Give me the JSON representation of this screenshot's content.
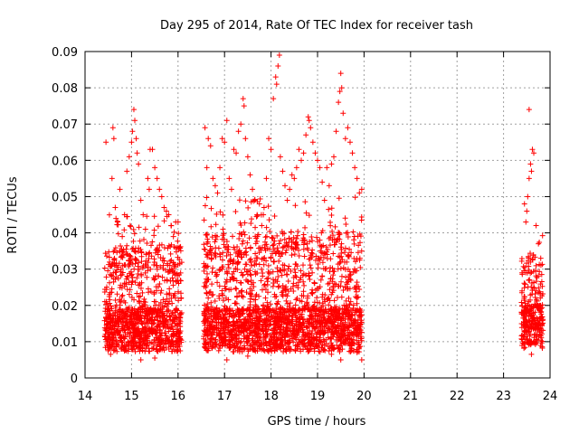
{
  "chart_data": {
    "type": "scatter",
    "title": "Day 295 of 2014, Rate Of TEC Index for receiver tash",
    "xlabel": "GPS time / hours",
    "ylabel": "ROTI / TECUs",
    "xlim": [
      14,
      24
    ],
    "ylim": [
      0,
      0.09
    ],
    "xticks": [
      "14",
      "15",
      "16",
      "17",
      "18",
      "19",
      "20",
      "21",
      "22",
      "23",
      "24"
    ],
    "yticks": [
      "0",
      "0.01",
      "0.02",
      "0.03",
      "0.04",
      "0.05",
      "0.06",
      "0.07",
      "0.08",
      "0.09"
    ],
    "grid": true,
    "marker": "+",
    "color": "#ff0000",
    "series": [
      {
        "name": "ROTI",
        "segments": [
          {
            "x_start": 14.42,
            "x_end": 16.08,
            "baseline": 0.012,
            "envelope": 0.045
          },
          {
            "x_start": 16.55,
            "x_end": 19.95,
            "baseline": 0.012,
            "envelope": 0.05
          },
          {
            "x_start": 23.38,
            "x_end": 23.85,
            "baseline": 0.013,
            "envelope": 0.04
          }
        ],
        "points": [
          [
            14.45,
            0.065
          ],
          [
            14.55,
            0.0065
          ],
          [
            14.58,
            0.055
          ],
          [
            14.6,
            0.069
          ],
          [
            14.62,
            0.066
          ],
          [
            14.65,
            0.047
          ],
          [
            14.7,
            0.043
          ],
          [
            14.75,
            0.052
          ],
          [
            14.8,
            0.039
          ],
          [
            14.85,
            0.045
          ],
          [
            14.9,
            0.057
          ],
          [
            14.95,
            0.061
          ],
          [
            15.0,
            0.065
          ],
          [
            15.02,
            0.068
          ],
          [
            15.05,
            0.074
          ],
          [
            15.07,
            0.071
          ],
          [
            15.1,
            0.066
          ],
          [
            15.12,
            0.062
          ],
          [
            15.15,
            0.059
          ],
          [
            15.2,
            0.049
          ],
          [
            15.25,
            0.045
          ],
          [
            15.3,
            0.041
          ],
          [
            15.35,
            0.055
          ],
          [
            15.38,
            0.052
          ],
          [
            15.4,
            0.063
          ],
          [
            15.45,
            0.063
          ],
          [
            15.5,
            0.058
          ],
          [
            15.55,
            0.055
          ],
          [
            15.6,
            0.052
          ],
          [
            15.65,
            0.05
          ],
          [
            15.7,
            0.047
          ],
          [
            15.75,
            0.046
          ],
          [
            15.8,
            0.045
          ],
          [
            15.85,
            0.042
          ],
          [
            15.9,
            0.039
          ],
          [
            15.95,
            0.043
          ],
          [
            16.0,
            0.043
          ],
          [
            16.58,
            0.069
          ],
          [
            16.62,
            0.058
          ],
          [
            16.65,
            0.066
          ],
          [
            16.7,
            0.064
          ],
          [
            16.75,
            0.055
          ],
          [
            16.8,
            0.053
          ],
          [
            16.85,
            0.051
          ],
          [
            16.9,
            0.058
          ],
          [
            16.95,
            0.066
          ],
          [
            17.0,
            0.065
          ],
          [
            17.05,
            0.071
          ],
          [
            17.1,
            0.055
          ],
          [
            17.15,
            0.052
          ],
          [
            17.2,
            0.063
          ],
          [
            17.25,
            0.062
          ],
          [
            17.3,
            0.068
          ],
          [
            17.35,
            0.07
          ],
          [
            17.4,
            0.077
          ],
          [
            17.42,
            0.075
          ],
          [
            17.45,
            0.066
          ],
          [
            17.5,
            0.061
          ],
          [
            17.55,
            0.056
          ],
          [
            17.6,
            0.052
          ],
          [
            17.65,
            0.049
          ],
          [
            17.7,
            0.045
          ],
          [
            17.75,
            0.048
          ],
          [
            17.8,
            0.042
          ],
          [
            17.85,
            0.047
          ],
          [
            17.9,
            0.055
          ],
          [
            17.95,
            0.066
          ],
          [
            18.0,
            0.063
          ],
          [
            18.05,
            0.077
          ],
          [
            18.1,
            0.083
          ],
          [
            18.12,
            0.081
          ],
          [
            18.15,
            0.086
          ],
          [
            18.18,
            0.089
          ],
          [
            18.2,
            0.061
          ],
          [
            18.25,
            0.057
          ],
          [
            18.3,
            0.053
          ],
          [
            18.35,
            0.049
          ],
          [
            18.4,
            0.052
          ],
          [
            18.45,
            0.056
          ],
          [
            18.5,
            0.055
          ],
          [
            18.55,
            0.058
          ],
          [
            18.6,
            0.063
          ],
          [
            18.65,
            0.06
          ],
          [
            18.7,
            0.062
          ],
          [
            18.75,
            0.067
          ],
          [
            18.8,
            0.072
          ],
          [
            18.82,
            0.071
          ],
          [
            18.85,
            0.069
          ],
          [
            18.9,
            0.065
          ],
          [
            18.95,
            0.062
          ],
          [
            19.0,
            0.06
          ],
          [
            19.05,
            0.058
          ],
          [
            19.1,
            0.054
          ],
          [
            19.15,
            0.049
          ],
          [
            19.2,
            0.058
          ],
          [
            19.25,
            0.053
          ],
          [
            19.3,
            0.059
          ],
          [
            19.35,
            0.061
          ],
          [
            19.4,
            0.068
          ],
          [
            19.45,
            0.076
          ],
          [
            19.48,
            0.079
          ],
          [
            19.5,
            0.084
          ],
          [
            19.52,
            0.08
          ],
          [
            19.55,
            0.073
          ],
          [
            19.6,
            0.066
          ],
          [
            19.65,
            0.069
          ],
          [
            19.7,
            0.065
          ],
          [
            19.75,
            0.062
          ],
          [
            19.8,
            0.058
          ],
          [
            19.85,
            0.055
          ],
          [
            19.9,
            0.051
          ],
          [
            19.95,
            0.052
          ],
          [
            19.95,
            0.005
          ],
          [
            19.85,
            0.007
          ],
          [
            19.5,
            0.005
          ],
          [
            19.3,
            0.0065
          ],
          [
            17.05,
            0.005
          ],
          [
            17.5,
            0.006
          ],
          [
            15.2,
            0.005
          ],
          [
            15.5,
            0.0055
          ],
          [
            23.45,
            0.048
          ],
          [
            23.48,
            0.043
          ],
          [
            23.5,
            0.046
          ],
          [
            23.52,
            0.05
          ],
          [
            23.55,
            0.055
          ],
          [
            23.58,
            0.059
          ],
          [
            23.6,
            0.057
          ],
          [
            23.62,
            0.063
          ],
          [
            23.65,
            0.062
          ],
          [
            23.7,
            0.042
          ],
          [
            23.75,
            0.037
          ],
          [
            23.8,
            0.033
          ],
          [
            23.55,
            0.074
          ],
          [
            23.6,
            0.0065
          ]
        ]
      }
    ]
  }
}
